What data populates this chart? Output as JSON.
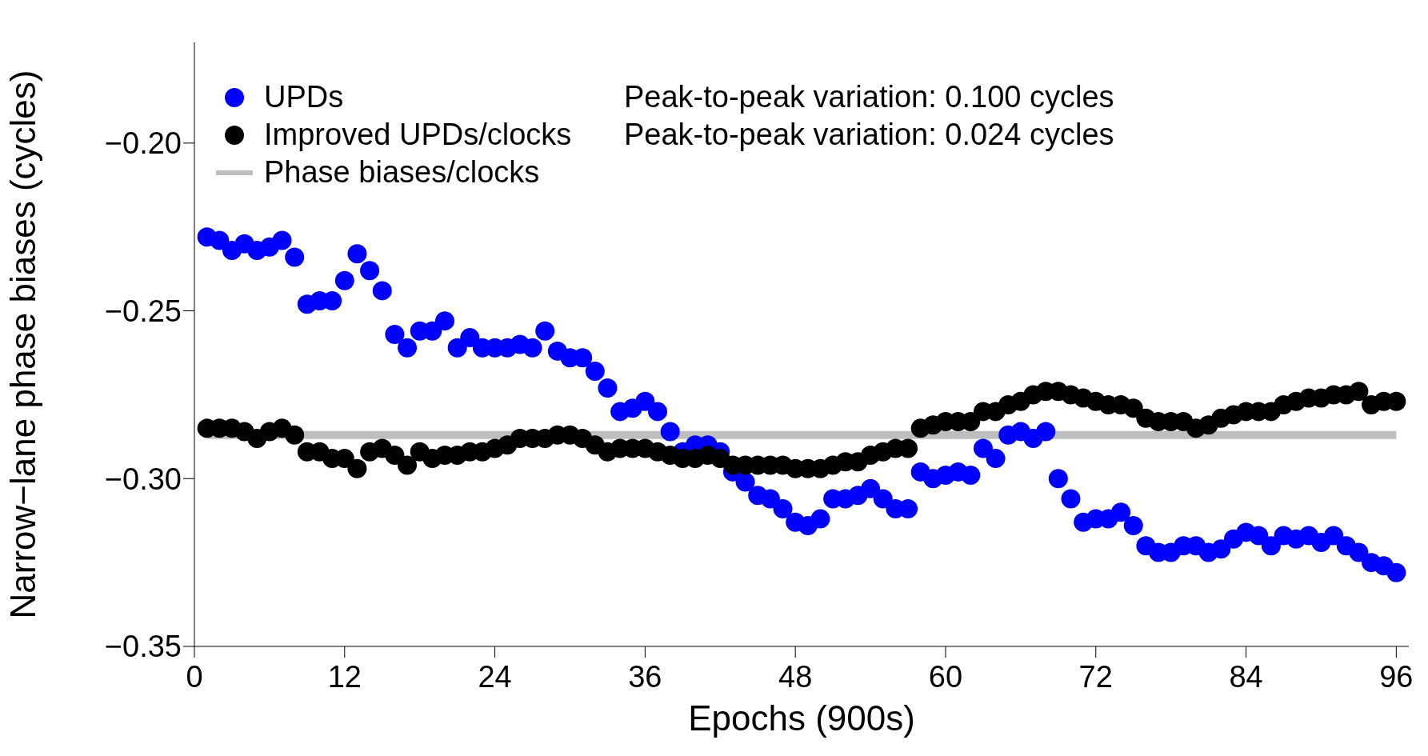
{
  "chart_data": {
    "type": "scatter",
    "xlabel": "Epochs (900s)",
    "ylabel": "Narrow−lane phase biases (cycles)",
    "x": [
      1,
      2,
      3,
      4,
      5,
      6,
      7,
      8,
      9,
      10,
      11,
      12,
      13,
      14,
      15,
      16,
      17,
      18,
      19,
      20,
      21,
      22,
      23,
      24,
      25,
      26,
      27,
      28,
      29,
      30,
      31,
      32,
      33,
      34,
      35,
      36,
      37,
      38,
      39,
      40,
      41,
      42,
      43,
      44,
      45,
      46,
      47,
      48,
      49,
      50,
      51,
      52,
      53,
      54,
      55,
      56,
      57,
      58,
      59,
      60,
      61,
      62,
      63,
      64,
      65,
      66,
      67,
      68,
      69,
      70,
      71,
      72,
      73,
      74,
      75,
      76,
      77,
      78,
      79,
      80,
      81,
      82,
      83,
      84,
      85,
      86,
      87,
      88,
      89,
      90,
      91,
      92,
      93,
      94,
      95,
      96
    ],
    "series": [
      {
        "name": "Phase biases/clocks",
        "type": "line",
        "marker": "none",
        "color": "#bebebe",
        "x": [
          1,
          96
        ],
        "values": [
          -0.287,
          -0.287
        ]
      },
      {
        "name": "UPDs",
        "color": "#0000ff",
        "values": [
          -0.228,
          -0.229,
          -0.232,
          -0.23,
          -0.232,
          -0.231,
          -0.229,
          -0.234,
          -0.248,
          -0.247,
          -0.247,
          -0.241,
          -0.233,
          -0.238,
          -0.244,
          -0.257,
          -0.261,
          -0.256,
          -0.256,
          -0.253,
          -0.261,
          -0.258,
          -0.261,
          -0.261,
          -0.261,
          -0.26,
          -0.261,
          -0.256,
          -0.262,
          -0.264,
          -0.264,
          -0.268,
          -0.273,
          -0.28,
          -0.279,
          -0.277,
          -0.28,
          -0.286,
          -0.292,
          -0.29,
          -0.29,
          -0.292,
          -0.298,
          -0.301,
          -0.305,
          -0.306,
          -0.309,
          -0.313,
          -0.314,
          -0.312,
          -0.306,
          -0.306,
          -0.305,
          -0.303,
          -0.306,
          -0.309,
          -0.309,
          -0.298,
          -0.3,
          -0.299,
          -0.298,
          -0.299,
          -0.291,
          -0.294,
          -0.287,
          -0.286,
          -0.288,
          -0.286,
          -0.3,
          -0.306,
          -0.313,
          -0.312,
          -0.312,
          -0.31,
          -0.314,
          -0.32,
          -0.322,
          -0.322,
          -0.32,
          -0.32,
          -0.322,
          -0.321,
          -0.318,
          -0.316,
          -0.317,
          -0.32,
          -0.317,
          -0.318,
          -0.317,
          -0.319,
          -0.317,
          -0.32,
          -0.322,
          -0.325,
          -0.326,
          -0.328
        ]
      },
      {
        "name": "Improved UPDs/clocks",
        "color": "#000000",
        "values": [
          -0.285,
          -0.285,
          -0.285,
          -0.286,
          -0.288,
          -0.286,
          -0.285,
          -0.287,
          -0.292,
          -0.292,
          -0.294,
          -0.294,
          -0.297,
          -0.292,
          -0.291,
          -0.293,
          -0.296,
          -0.292,
          -0.294,
          -0.293,
          -0.293,
          -0.292,
          -0.292,
          -0.291,
          -0.29,
          -0.288,
          -0.288,
          -0.288,
          -0.287,
          -0.287,
          -0.288,
          -0.29,
          -0.292,
          -0.291,
          -0.291,
          -0.291,
          -0.292,
          -0.293,
          -0.294,
          -0.294,
          -0.293,
          -0.294,
          -0.296,
          -0.296,
          -0.296,
          -0.296,
          -0.296,
          -0.297,
          -0.297,
          -0.297,
          -0.296,
          -0.295,
          -0.295,
          -0.293,
          -0.292,
          -0.291,
          -0.291,
          -0.285,
          -0.284,
          -0.283,
          -0.283,
          -0.283,
          -0.28,
          -0.28,
          -0.278,
          -0.277,
          -0.275,
          -0.274,
          -0.274,
          -0.275,
          -0.276,
          -0.277,
          -0.278,
          -0.278,
          -0.279,
          -0.282,
          -0.283,
          -0.283,
          -0.283,
          -0.285,
          -0.284,
          -0.282,
          -0.281,
          -0.28,
          -0.28,
          -0.28,
          -0.278,
          -0.277,
          -0.276,
          -0.276,
          -0.275,
          -0.275,
          -0.274,
          -0.278,
          -0.277,
          -0.277
        ]
      }
    ],
    "annotations": [
      "Peak-to-peak variation: 0.100 cycles",
      "Peak-to-peak variation: 0.024 cycles"
    ],
    "xlim": [
      0,
      97
    ],
    "xticks": [
      0,
      12,
      24,
      36,
      48,
      60,
      72,
      84,
      96
    ],
    "ylim": [
      -0.35,
      -0.17
    ],
    "yticks": [
      {
        "value": -0.35,
        "label": "−0.35"
      },
      {
        "value": -0.3,
        "label": "−0.30"
      },
      {
        "value": -0.25,
        "label": "−0.25"
      },
      {
        "value": -0.2,
        "label": "−0.20"
      }
    ],
    "marker": "circle",
    "legend": "top left",
    "grid": false
  }
}
